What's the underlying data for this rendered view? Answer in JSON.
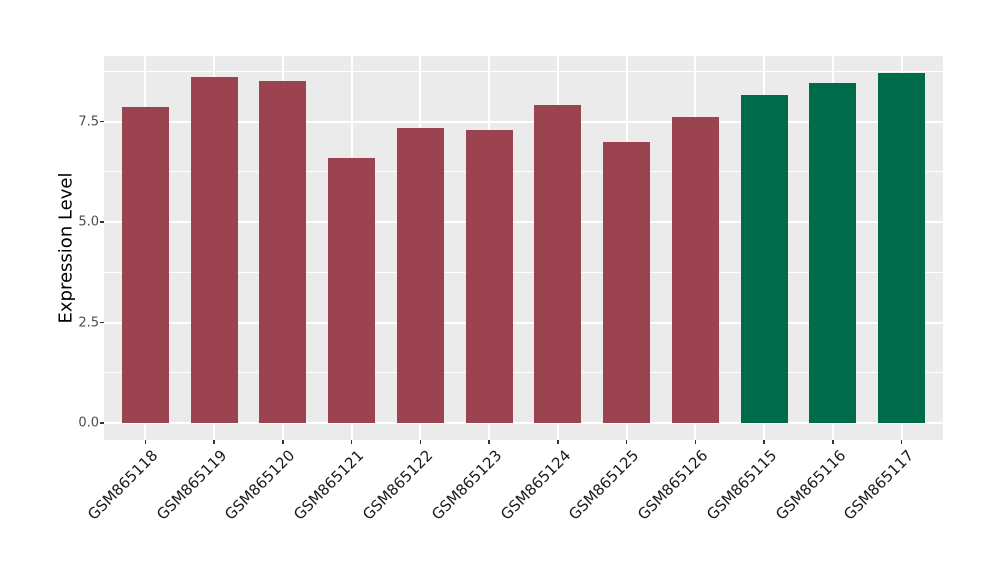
{
  "figure": {
    "background": "#FFFFFF"
  },
  "chart_data": {
    "type": "bar",
    "title": "",
    "xlabel": "",
    "ylabel": "Expression Level",
    "categories": [
      "GSM865118",
      "GSM865119",
      "GSM865120",
      "GSM865121",
      "GSM865122",
      "GSM865123",
      "GSM865124",
      "GSM865125",
      "GSM865126",
      "GSM865115",
      "GSM865116",
      "GSM865117"
    ],
    "values": [
      7.85,
      8.6,
      8.5,
      6.6,
      7.35,
      7.3,
      7.9,
      7.0,
      7.6,
      8.15,
      8.45,
      8.7
    ],
    "bar_colors": [
      "#9C4351",
      "#9C4351",
      "#9C4351",
      "#9C4351",
      "#9C4351",
      "#9C4351",
      "#9C4351",
      "#9C4351",
      "#9C4351",
      "#006B4B",
      "#006B4B",
      "#006B4B"
    ],
    "color_groups": [
      {
        "color": "#9C4351",
        "first_category": "GSM865118",
        "last_category": "GSM865126"
      },
      {
        "color": "#006B4B",
        "first_category": "GSM865115",
        "last_category": "GSM865117"
      }
    ],
    "ytick_labels": [
      "0.0",
      "2.5",
      "5.0",
      "7.5"
    ],
    "ytick_values": [
      0,
      2.5,
      5,
      7.5
    ],
    "yminor_values": [
      1.25,
      3.75,
      6.25,
      8.75
    ],
    "ylim": [
      -0.45,
      9.13
    ],
    "grid": true,
    "legend": "none",
    "x_label_rotation": 45,
    "panel_background": "#EBEBEB",
    "grid_color": "#FFFFFF",
    "tick_color": "#333333",
    "axis_text_color": "#4D4D4D",
    "x_axis_text_color": "#1A1A1A"
  }
}
